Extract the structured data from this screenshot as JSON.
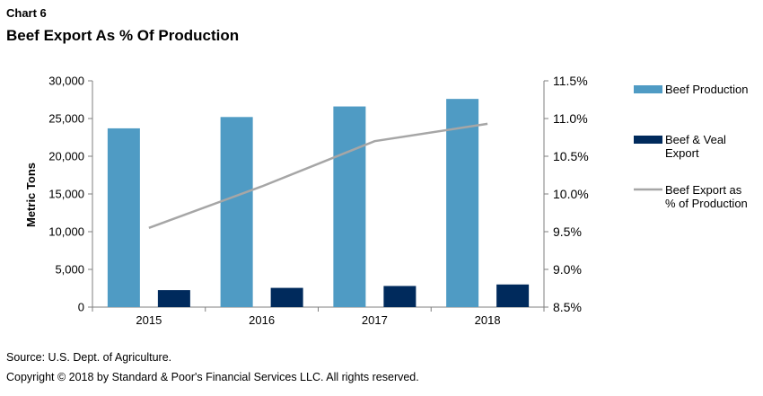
{
  "header": {
    "chart_number": "Chart 6",
    "title": "Beef Export As % Of Production"
  },
  "footer": {
    "source": "Source: U.S. Dept. of Agriculture.",
    "copyright": "Copyright © 2018 by Standard & Poor's Financial Services LLC. All rights reserved."
  },
  "colors": {
    "beef_production": "#4f9bc4",
    "beef_veal_export": "#002a5c",
    "export_pct_line": "#a6a6a6",
    "axis": "#7f7f7f"
  },
  "chart_data": {
    "type": "bar",
    "title": "Beef Export As % Of Production",
    "categories": [
      "2015",
      "2016",
      "2017",
      "2018"
    ],
    "ylabel": "Metric Tons",
    "ylim": [
      0,
      30000
    ],
    "y_ticks": [
      "0",
      "5,000",
      "10,000",
      "15,000",
      "20,000",
      "25,000",
      "30,000"
    ],
    "y2lim": [
      8.5,
      11.5
    ],
    "y2_ticks": [
      "8.5%",
      "9.0%",
      "9.5%",
      "10.0%",
      "10.5%",
      "11.0%",
      "11.5%"
    ],
    "legend_position": "right",
    "series": [
      {
        "name": "Beef Production",
        "type": "bar",
        "axis": "left",
        "values": [
          23700,
          25200,
          26600,
          27600
        ]
      },
      {
        "name": "Beef & Veal Export",
        "type": "bar",
        "axis": "left",
        "values": [
          2250,
          2550,
          2800,
          3000
        ]
      },
      {
        "name": "Beef Export as % of Production",
        "type": "line",
        "axis": "right",
        "values": [
          9.55,
          10.1,
          10.7,
          10.93
        ]
      }
    ]
  }
}
